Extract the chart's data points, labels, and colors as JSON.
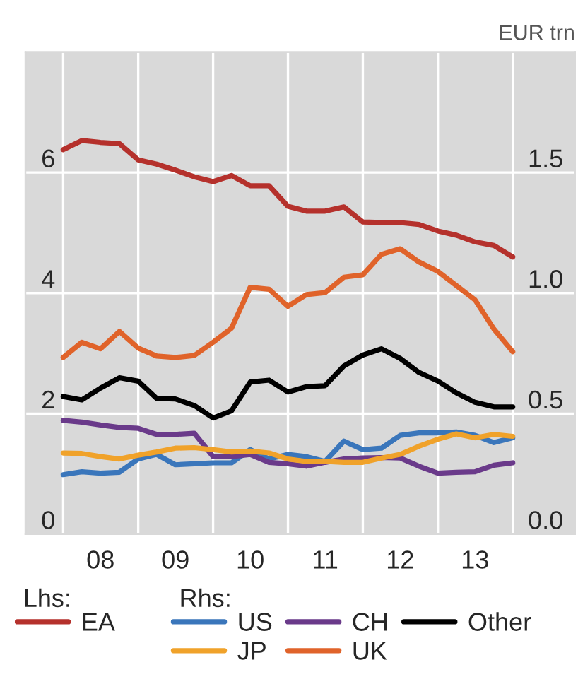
{
  "chart_data": {
    "type": "line",
    "y2label": "EUR trn",
    "x": [
      "2008-01",
      "2008-04",
      "2008-07",
      "2008-10",
      "2009-01",
      "2009-04",
      "2009-07",
      "2009-10",
      "2010-01",
      "2010-04",
      "2010-07",
      "2010-10",
      "2011-01",
      "2011-04",
      "2011-07",
      "2011-10",
      "2012-01",
      "2012-04",
      "2012-07",
      "2012-10",
      "2013-01",
      "2013-04",
      "2013-07",
      "2013-10",
      "2014-01"
    ],
    "series": [
      {
        "name": "EA",
        "color": "#b5312c",
        "values": [
          6.38,
          6.53,
          6.5,
          6.48,
          6.21,
          6.14,
          6.04,
          5.93,
          5.85,
          5.95,
          5.78,
          5.78,
          5.44,
          5.36,
          5.36,
          5.43,
          5.18,
          5.17,
          5.17,
          5.14,
          5.03,
          4.96,
          4.85,
          4.79,
          4.6
        ]
      },
      {
        "name": "US",
        "color": "#3a76bb",
        "axis": "y2",
        "values": [
          0.247,
          0.259,
          0.253,
          0.257,
          0.312,
          0.331,
          0.288,
          0.292,
          0.296,
          0.296,
          0.351,
          0.312,
          0.331,
          0.322,
          0.302,
          0.386,
          0.351,
          0.357,
          0.41,
          0.42,
          0.42,
          0.424,
          0.41,
          0.38,
          0.4
        ]
      },
      {
        "name": "CH",
        "color": "#6a3a8a",
        "axis": "y2",
        "values": [
          0.472,
          0.465,
          0.453,
          0.443,
          0.439,
          0.414,
          0.414,
          0.419,
          0.322,
          0.322,
          0.331,
          0.298,
          0.292,
          0.282,
          0.298,
          0.312,
          0.316,
          0.318,
          0.316,
          0.282,
          0.253,
          0.257,
          0.259,
          0.286,
          0.296
        ]
      },
      {
        "name": "Other",
        "color": "#000000",
        "axis": "y2",
        "values": [
          0.571,
          0.557,
          0.606,
          0.649,
          0.635,
          0.563,
          0.561,
          0.534,
          0.482,
          0.512,
          0.631,
          0.639,
          0.59,
          0.612,
          0.616,
          0.698,
          0.743,
          0.769,
          0.729,
          0.671,
          0.635,
          0.586,
          0.547,
          0.528,
          0.528
        ]
      },
      {
        "name": "JP",
        "color": "#f0a22a",
        "axis": "y2",
        "values": [
          0.337,
          0.335,
          0.322,
          0.312,
          0.328,
          0.341,
          0.357,
          0.359,
          0.351,
          0.341,
          0.345,
          0.337,
          0.312,
          0.302,
          0.302,
          0.298,
          0.298,
          0.316,
          0.331,
          0.365,
          0.394,
          0.416,
          0.4,
          0.414,
          0.406
        ]
      },
      {
        "name": "UK",
        "color": "#e0632a",
        "axis": "y2",
        "values": [
          0.733,
          0.796,
          0.769,
          0.841,
          0.772,
          0.739,
          0.733,
          0.741,
          0.796,
          0.855,
          1.024,
          1.016,
          0.945,
          0.994,
          1.002,
          1.066,
          1.076,
          1.161,
          1.184,
          1.129,
          1.09,
          1.031,
          0.972,
          0.851,
          0.757
        ]
      }
    ],
    "xlim": [
      "2007-07",
      "2014-11"
    ],
    "xticks": [
      {
        "value": "2008-01",
        "label": null
      },
      {
        "value": "2009-01",
        "label": null
      },
      {
        "value": "2010-01",
        "label": null
      },
      {
        "value": "2011-01",
        "label": null
      },
      {
        "value": "2012-01",
        "label": null
      },
      {
        "value": "2013-01",
        "label": null
      },
      {
        "value": "2014-01",
        "label": null
      },
      {
        "value": "2008-07",
        "label": "08"
      },
      {
        "value": "2009-07",
        "label": "09"
      },
      {
        "value": "2010-07",
        "label": "10"
      },
      {
        "value": "2011-07",
        "label": "11"
      },
      {
        "value": "2012-07",
        "label": "12"
      },
      {
        "value": "2013-07",
        "label": "13"
      }
    ],
    "ylim": [
      0,
      8
    ],
    "yticks": [
      0,
      2,
      4,
      6
    ],
    "y2lim": [
      0,
      2
    ],
    "y2ticks": [
      {
        "value": 0,
        "label": "0.0"
      },
      {
        "value": 0.5,
        "label": "0.5"
      },
      {
        "value": 1,
        "label": "1.0"
      },
      {
        "value": 1.5,
        "label": "1.5"
      }
    ],
    "annotations": [
      "Lhs:",
      "Rhs:"
    ],
    "grid": true,
    "legend": "bottom",
    "marker": "none",
    "line_style": "solid"
  }
}
